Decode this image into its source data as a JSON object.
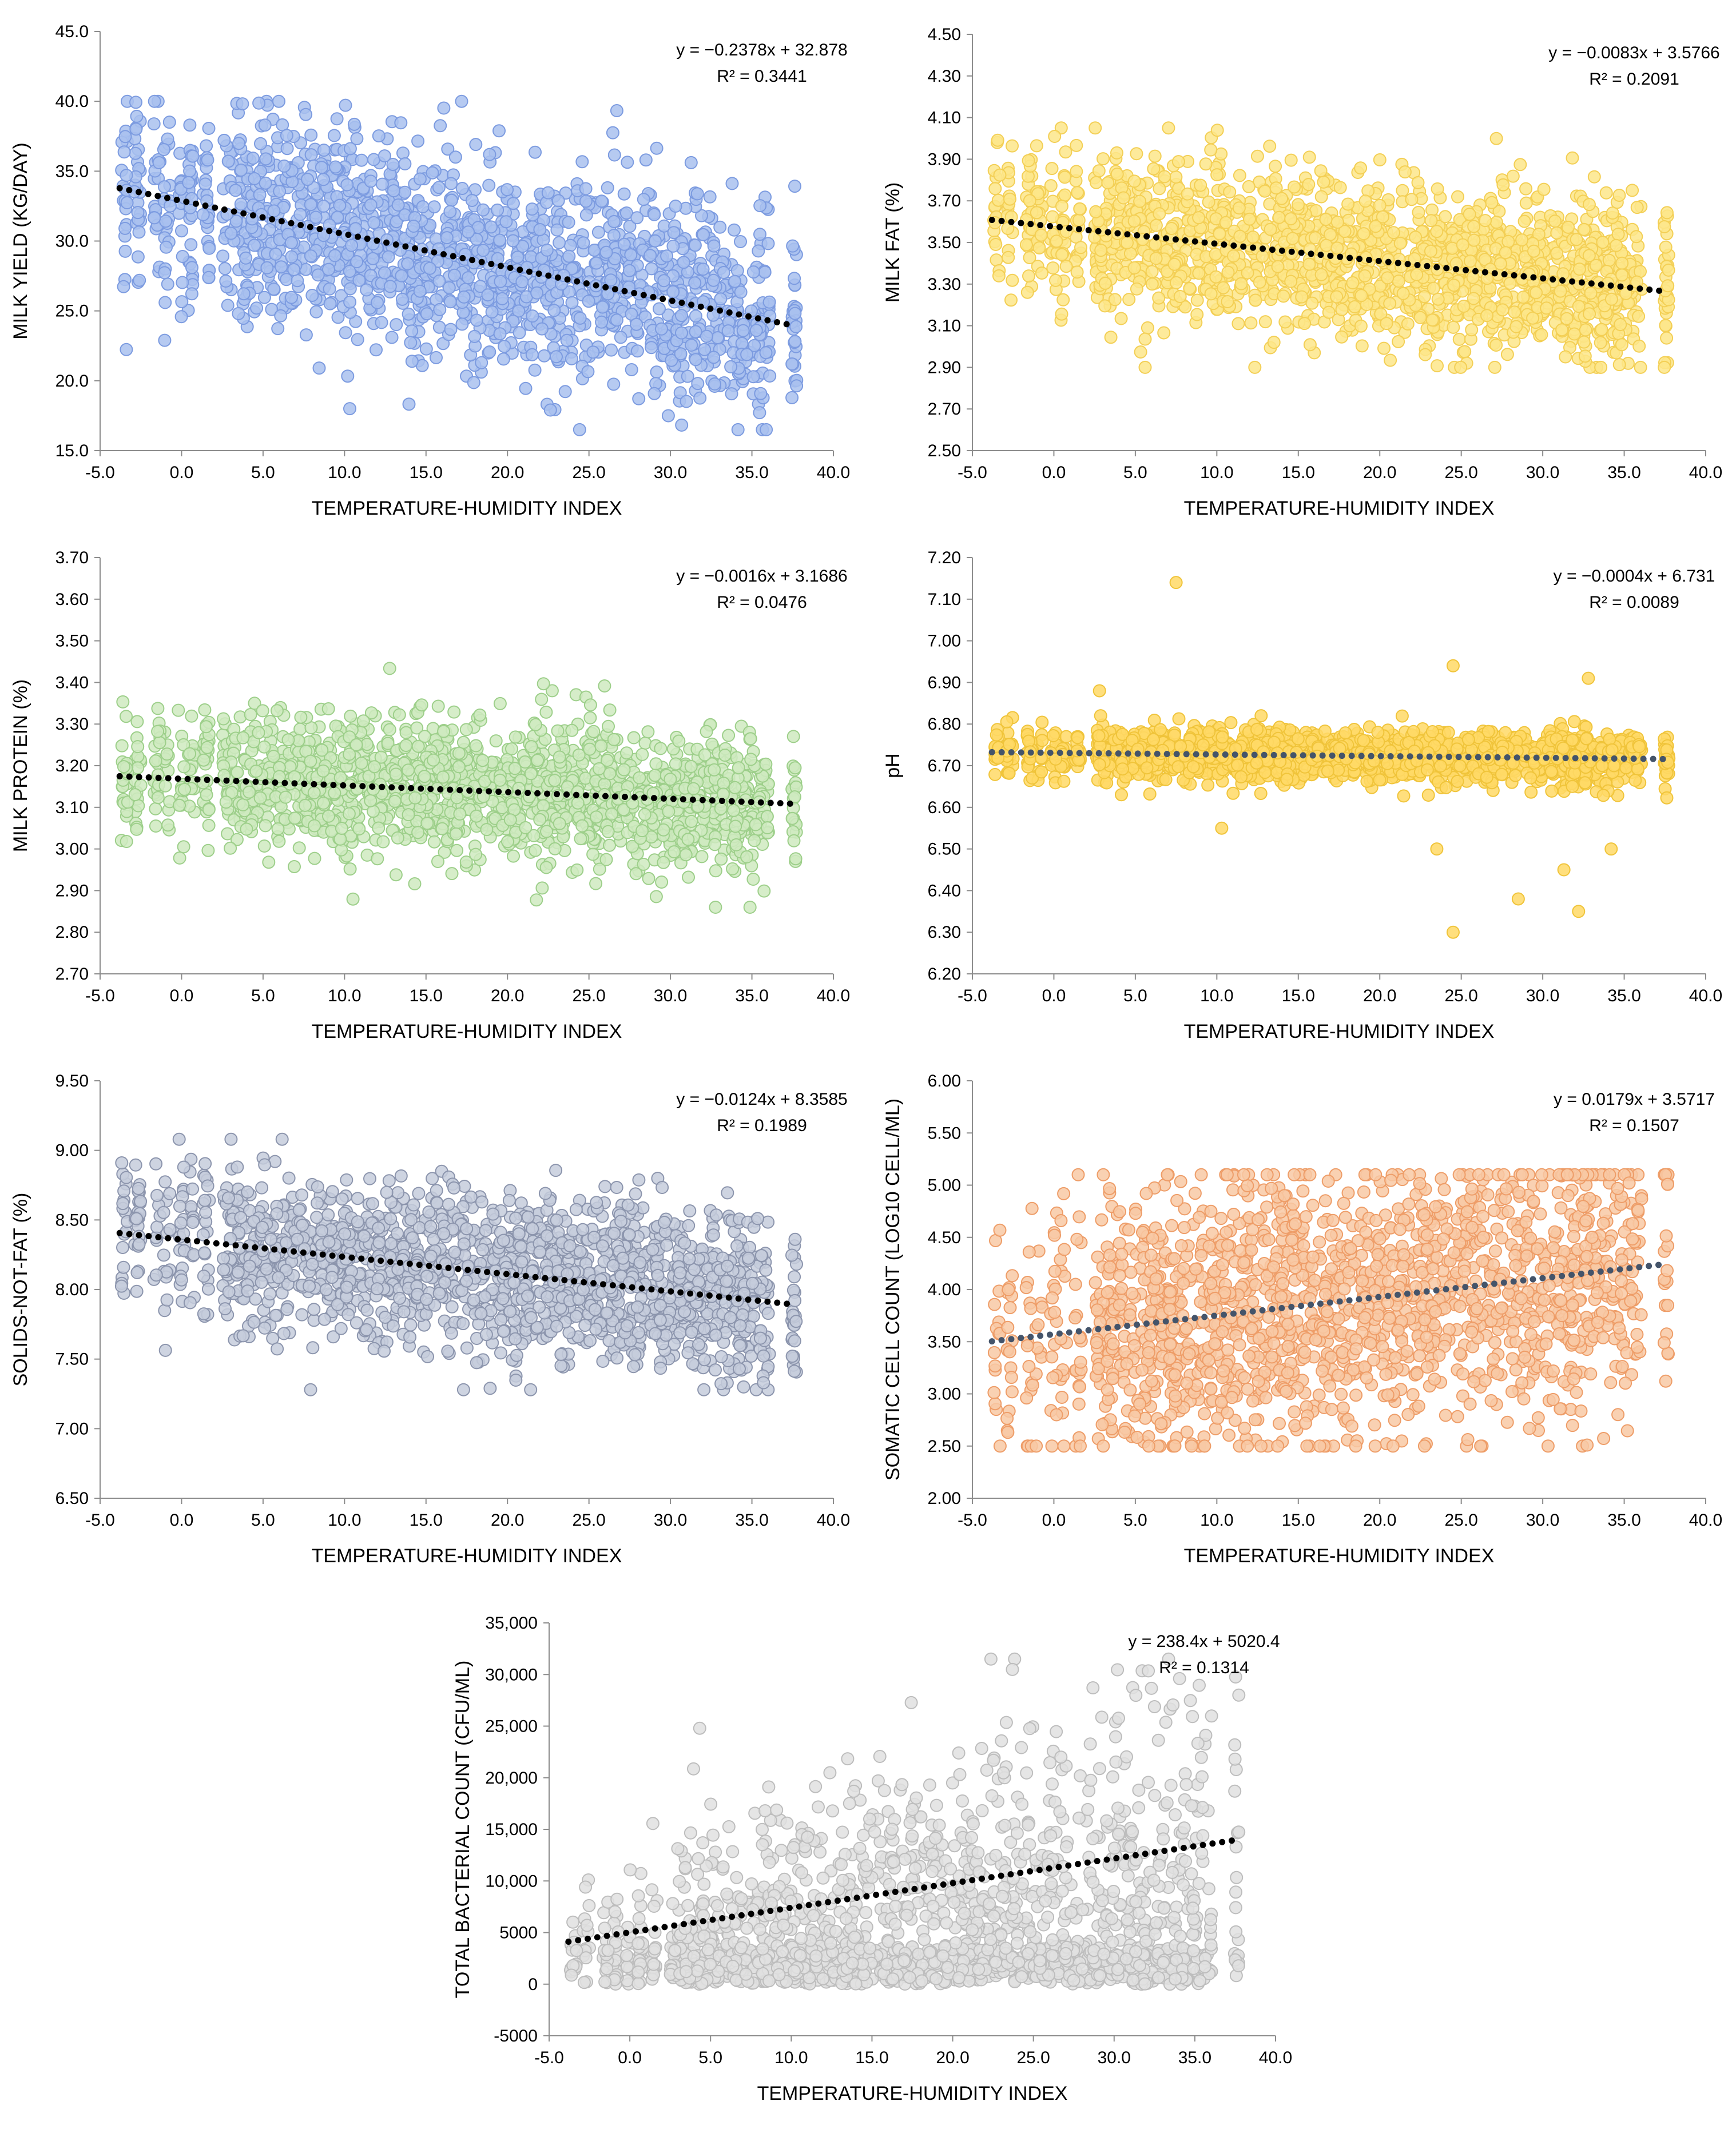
{
  "figure": {
    "layout": "seven scatter plots with dotted linear trendlines"
  },
  "colors": {
    "milk_yield": "#a9c1ef",
    "milk_yield_edge": "#7c9be0",
    "milk_fat": "#fde68a",
    "milk_fat_edge": "#f3cf55",
    "milk_protein": "#cfeac0",
    "milk_protein_edge": "#9dcf8a",
    "ph": "#ffd966",
    "ph_edge": "#f0c43a",
    "snf": "#c6ccdc",
    "snf_edge": "#8c95ad",
    "scc": "#f8c9a4",
    "scc_edge": "#ee9d68",
    "tbc": "#e0e0e0",
    "tbc_edge": "#bdbdbd",
    "trend_black": "#000000",
    "trend_slate": "#44546a"
  },
  "chart_data": [
    {
      "id": "milk_yield",
      "type": "scatter",
      "xlabel": "TEMPERATURE-HUMIDITY INDEX",
      "ylabel": "MILK YIELD (KG/DAY)",
      "xlim": [
        -5,
        40
      ],
      "ylim": [
        15,
        45
      ],
      "xticks": [
        "-5.0",
        "0.0",
        "5.0",
        "10.0",
        "15.0",
        "20.0",
        "25.0",
        "30.0",
        "35.0",
        "40.0"
      ],
      "yticks": [
        "15.0",
        "20.0",
        "25.0",
        "30.0",
        "35.0",
        "40.0",
        "45.0"
      ],
      "equation": "y = −0.2378x + 32.878",
      "r2": "R² = 0.3441",
      "trend": {
        "slope": -0.2378,
        "intercept": 32.878,
        "x_range": [
          -3.8,
          37.5
        ]
      },
      "point_cloud": {
        "x_range": [
          -3.8,
          37.8
        ],
        "y_center": "trend",
        "y_spread": 4.2,
        "y_clip": [
          16.5,
          40
        ],
        "n": 1700
      },
      "color_key": "milk_yield",
      "edge_key": "milk_yield_edge",
      "trend_color_key": "trend_black"
    },
    {
      "id": "milk_fat",
      "type": "scatter",
      "xlabel": "TEMPERATURE-HUMIDITY INDEX",
      "ylabel": "MILK FAT (%)",
      "xlim": [
        -5,
        40
      ],
      "ylim": [
        2.5,
        4.5
      ],
      "xticks": [
        "-5.0",
        "0.0",
        "5.0",
        "10.0",
        "15.0",
        "20.0",
        "25.0",
        "30.0",
        "35.0",
        "40.0"
      ],
      "yticks": [
        "2.50",
        "2.70",
        "2.90",
        "3.10",
        "3.30",
        "3.50",
        "3.70",
        "3.90",
        "4.10",
        "4.30",
        "4.50"
      ],
      "equation": "y = −0.0083x + 3.5766",
      "r2": "R² = 0.2091",
      "trend": {
        "slope": -0.0083,
        "intercept": 3.5766,
        "x_range": [
          -3.8,
          37.5
        ]
      },
      "point_cloud": {
        "x_range": [
          -3.8,
          37.8
        ],
        "y_center": "trend",
        "y_spread": 0.22,
        "y_clip": [
          2.9,
          4.05
        ],
        "n": 1700
      },
      "color_key": "milk_fat",
      "edge_key": "milk_fat_edge",
      "trend_color_key": "trend_black"
    },
    {
      "id": "milk_protein",
      "type": "scatter",
      "xlabel": "TEMPERATURE-HUMIDITY INDEX",
      "ylabel": "MILK PROTEIN (%)",
      "xlim": [
        -5,
        40
      ],
      "ylim": [
        2.7,
        3.7
      ],
      "xticks": [
        "-5.0",
        "0.0",
        "5.0",
        "10.0",
        "15.0",
        "20.0",
        "25.0",
        "30.0",
        "35.0",
        "40.0"
      ],
      "yticks": [
        "2.70",
        "2.80",
        "2.90",
        "3.00",
        "3.10",
        "3.20",
        "3.30",
        "3.40",
        "3.50",
        "3.60",
        "3.70"
      ],
      "equation": "y = −0.0016x + 3.1686",
      "r2": "R² = 0.0476",
      "trend": {
        "slope": -0.0016,
        "intercept": 3.1686,
        "x_range": [
          -3.8,
          37.5
        ]
      },
      "point_cloud": {
        "x_range": [
          -3.8,
          37.8
        ],
        "y_center": "trend",
        "y_spread": 0.09,
        "y_clip": [
          2.86,
          3.47
        ],
        "n": 1700
      },
      "color_key": "milk_protein",
      "edge_key": "milk_protein_edge",
      "trend_color_key": "trend_black"
    },
    {
      "id": "ph",
      "type": "scatter",
      "xlabel": "TEMPERATURE-HUMIDITY INDEX",
      "ylabel": "pH",
      "xlim": [
        -5,
        40
      ],
      "ylim": [
        6.2,
        7.2
      ],
      "xticks": [
        "-5.0",
        "0.0",
        "5.0",
        "10.0",
        "15.0",
        "20.0",
        "25.0",
        "30.0",
        "35.0",
        "40.0"
      ],
      "yticks": [
        "6.20",
        "6.30",
        "6.40",
        "6.50",
        "6.60",
        "6.70",
        "6.80",
        "6.90",
        "7.00",
        "7.10",
        "7.20"
      ],
      "equation": "y = −0.0004x + 6.731",
      "r2": "R² = 0.0089",
      "trend": {
        "slope": -0.0004,
        "intercept": 6.731,
        "x_range": [
          -3.8,
          37.5
        ]
      },
      "point_cloud": {
        "x_range": [
          -3.8,
          37.8
        ],
        "y_center": "trend",
        "y_spread": 0.035,
        "y_clip": [
          6.6,
          6.82
        ],
        "n": 1700
      },
      "outliers": [
        [
          7.5,
          7.14
        ],
        [
          24.5,
          6.94
        ],
        [
          24.5,
          6.3
        ],
        [
          32.2,
          6.35
        ],
        [
          28.5,
          6.38
        ],
        [
          31.3,
          6.45
        ],
        [
          23.5,
          6.5
        ],
        [
          34.2,
          6.5
        ],
        [
          10.3,
          6.55
        ],
        [
          2.8,
          6.88
        ],
        [
          32.8,
          6.91
        ]
      ],
      "color_key": "ph",
      "edge_key": "ph_edge",
      "trend_color_key": "trend_slate"
    },
    {
      "id": "snf",
      "type": "scatter",
      "xlabel": "TEMPERATURE-HUMIDITY INDEX",
      "ylabel": "SOLIDS-NOT-FAT (%)",
      "xlim": [
        -5,
        40
      ],
      "ylim": [
        6.5,
        9.5
      ],
      "xticks": [
        "-5.0",
        "0.0",
        "5.0",
        "10.0",
        "15.0",
        "20.0",
        "25.0",
        "30.0",
        "35.0",
        "40.0"
      ],
      "yticks": [
        "6.50",
        "7.00",
        "7.50",
        "8.00",
        "8.50",
        "9.00",
        "9.50"
      ],
      "equation": "y = −0.0124x + 8.3585",
      "r2": "R² = 0.1989",
      "trend": {
        "slope": -0.0124,
        "intercept": 8.3585,
        "x_range": [
          -3.8,
          37.5
        ]
      },
      "point_cloud": {
        "x_range": [
          -3.8,
          37.8
        ],
        "y_center": "trend",
        "y_spread": 0.32,
        "y_clip": [
          7.28,
          9.08
        ],
        "n": 1700
      },
      "color_key": "snf",
      "edge_key": "snf_edge",
      "trend_color_key": "trend_black"
    },
    {
      "id": "scc",
      "type": "scatter",
      "xlabel": "TEMPERATURE-HUMIDITY INDEX",
      "ylabel": "SOMATIC CELL COUNT (LOG10 CELL/ML)",
      "xlim": [
        -5,
        40
      ],
      "ylim": [
        2.0,
        6.0
      ],
      "xticks": [
        "-5.0",
        "0.0",
        "5.0",
        "10.0",
        "15.0",
        "20.0",
        "25.0",
        "30.0",
        "35.0",
        "40.0"
      ],
      "yticks": [
        "2.00",
        "2.50",
        "3.00",
        "3.50",
        "4.00",
        "4.50",
        "5.00",
        "5.50",
        "6.00"
      ],
      "equation": "y =  0.0179x + 3.5717",
      "r2": "R² = 0.1507",
      "trend": {
        "slope": 0.0179,
        "intercept": 3.5717,
        "x_range": [
          -3.8,
          37.5
        ]
      },
      "point_cloud": {
        "x_range": [
          -3.8,
          37.8
        ],
        "y_center": "trend",
        "y_spread": 0.75,
        "y_clip": [
          2.5,
          5.1
        ],
        "n": 1700
      },
      "color_key": "scc",
      "edge_key": "scc_edge",
      "trend_color_key": "trend_slate"
    },
    {
      "id": "tbc",
      "type": "scatter",
      "xlabel": "TEMPERATURE-HUMIDITY INDEX",
      "ylabel": "TOTAL BACTERIAL COUNT (CFU/ML)",
      "xlim": [
        -5,
        40
      ],
      "ylim": [
        -5000,
        35000
      ],
      "xticks": [
        "-5.0",
        "0.0",
        "5.0",
        "10.0",
        "15.0",
        "20.0",
        "25.0",
        "30.0",
        "35.0",
        "40.0"
      ],
      "yticks": [
        "-5000",
        "0",
        "5000",
        "10,000",
        "15,000",
        "20,000",
        "25,000",
        "30,000",
        "35,000"
      ],
      "equation": "y = 238.4x + 5020.4",
      "r2": "R² = 0.1314",
      "trend": {
        "slope": 238.4,
        "intercept": 5020.4,
        "x_range": [
          -3.8,
          37.5
        ]
      },
      "point_cloud": {
        "x_range": [
          -3.8,
          37.8
        ],
        "y_center": "skewed",
        "y_spread": 9000,
        "y_clip": [
          0,
          31500
        ],
        "n": 1700
      },
      "color_key": "tbc",
      "edge_key": "tbc_edge",
      "trend_color_key": "trend_black"
    }
  ]
}
